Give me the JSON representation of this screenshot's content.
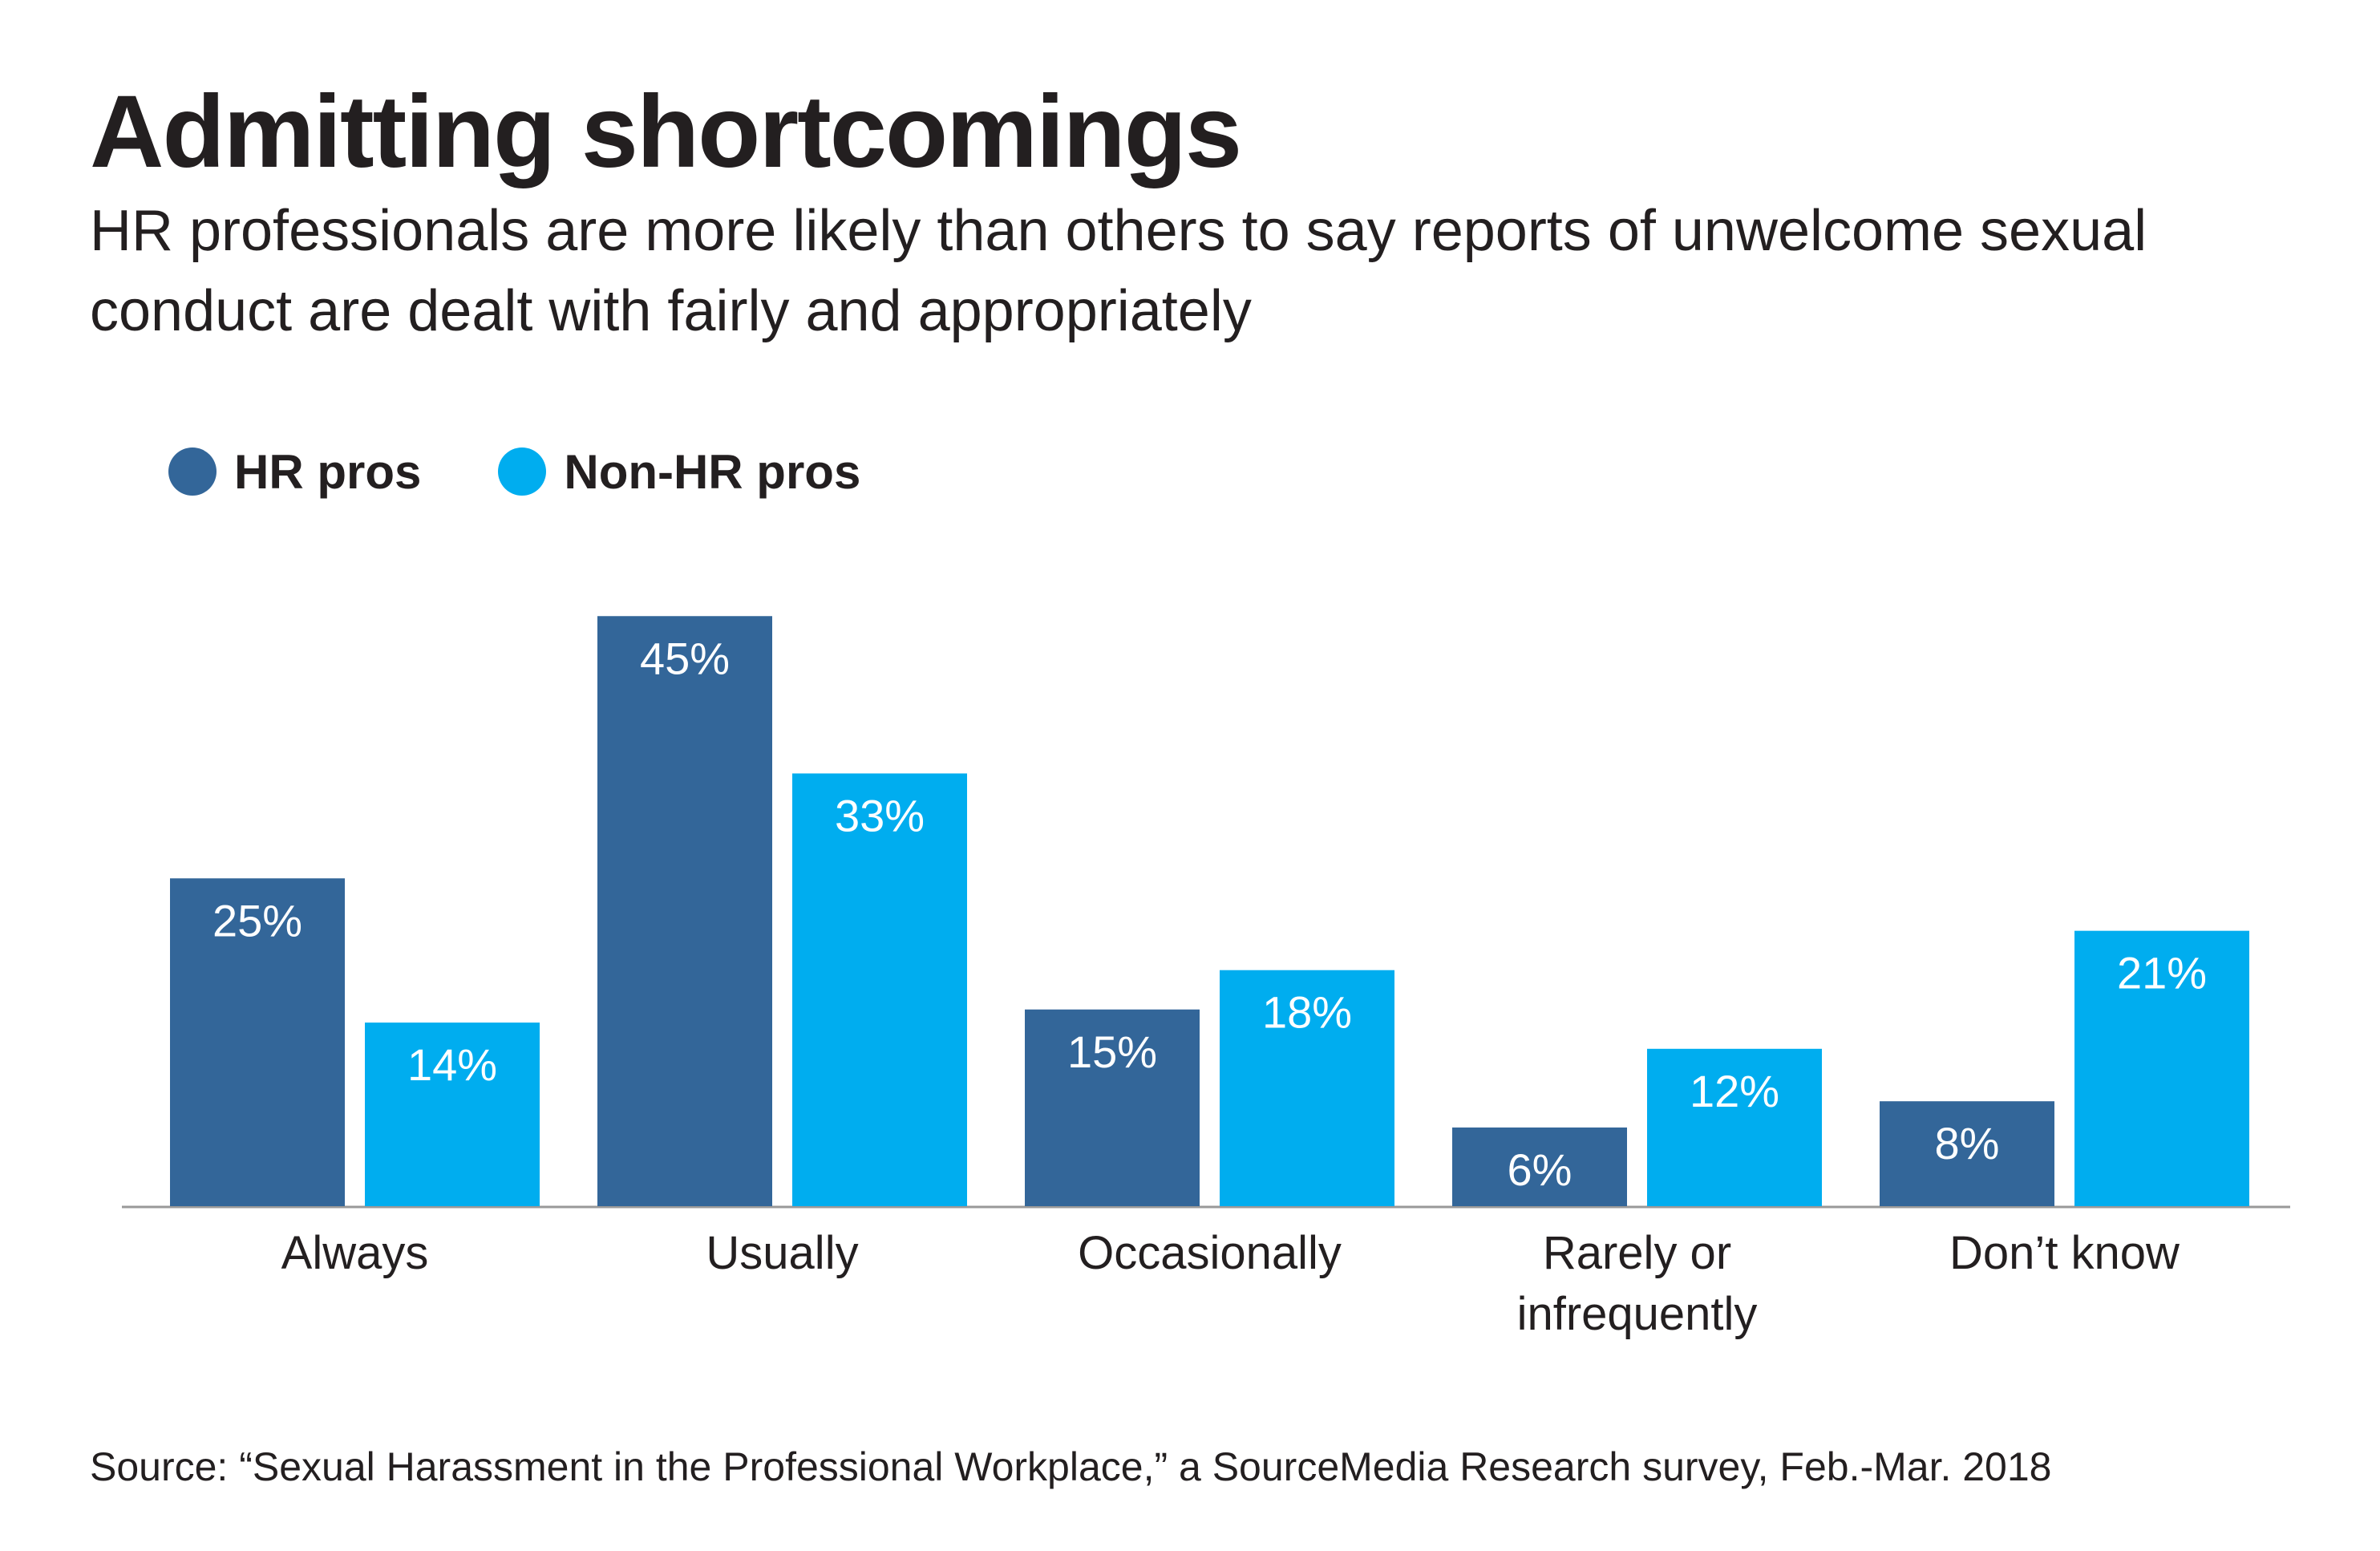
{
  "title": "Admitting shortcomings",
  "subtitle": "HR professionals are more likely than others to say reports of unwelcome sexual conduct are dealt with fairly and appropriately",
  "source": "Source: “Sexual Harassment in the Professional Workplace,” a SourceMedia Research survey, Feb.-Mar. 2018",
  "colors": {
    "hr": "#336699",
    "non_hr": "#00adef",
    "axis": "#999999",
    "text": "#231f20",
    "bar_label": "#ffffff"
  },
  "legend": [
    {
      "label": "HR pros",
      "color": "#336699"
    },
    {
      "label": "Non-HR pros",
      "color": "#00adef"
    }
  ],
  "chart_data": {
    "type": "bar",
    "categories": [
      [
        "Always"
      ],
      [
        "Usually"
      ],
      [
        "Occasionally"
      ],
      [
        "Rarely or",
        "infrequently"
      ],
      [
        "Don’t know"
      ]
    ],
    "series": [
      {
        "name": "HR pros",
        "values": [
          25,
          45,
          15,
          6,
          8
        ],
        "labels": [
          "25%",
          "45%",
          "15%",
          "6%",
          "8%"
        ]
      },
      {
        "name": "Non-HR pros",
        "values": [
          14,
          33,
          18,
          12,
          21
        ],
        "labels": [
          "14%",
          "33%",
          "18%",
          "12%",
          "21%"
        ]
      }
    ],
    "ylim": [
      0,
      100
    ],
    "grid": false,
    "legend_position": "top-left",
    "xlabel": "",
    "ylabel": ""
  }
}
